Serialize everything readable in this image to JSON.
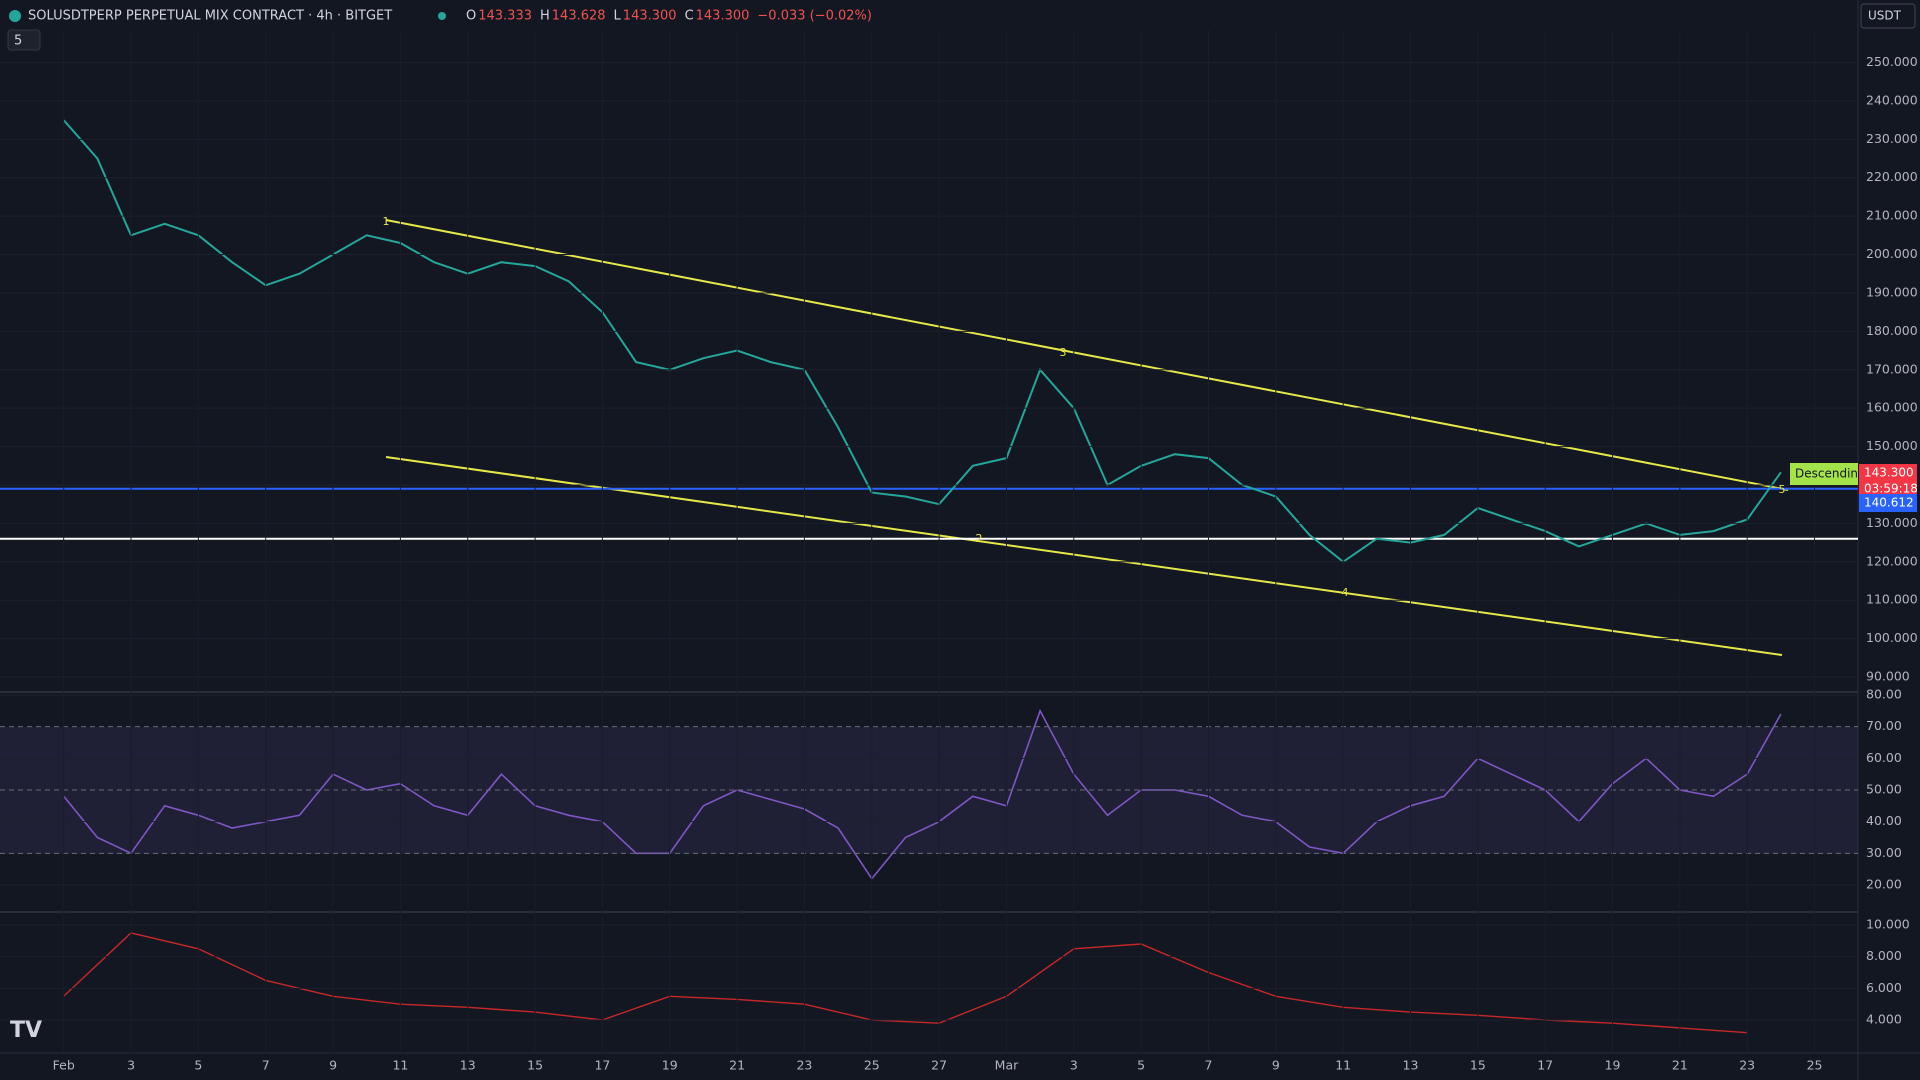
{
  "header": {
    "symbol": "SOLUSDTPERP PERPETUAL MIX CONTRACT · 4h · BITGET",
    "ohlc": [
      {
        "label": "O",
        "value": "143.333"
      },
      {
        "label": "H",
        "value": "143.628"
      },
      {
        "label": "L",
        "value": "143.300"
      },
      {
        "label": "C",
        "value": "143.300"
      }
    ],
    "change": "−0.033 (−0.02%)",
    "indicators_count": "5",
    "currency": "USDT"
  },
  "price_axis": [
    "250.000",
    "240.000",
    "230.000",
    "220.000",
    "210.000",
    "200.000",
    "190.000",
    "180.000",
    "170.000",
    "160.000",
    "150.000",
    "140.000",
    "130.000",
    "120.000",
    "110.000",
    "100.000",
    "90.000"
  ],
  "price_tags": {
    "last": "143.300",
    "countdown": "03:59:18",
    "level": "140.612",
    "pattern": "Descending"
  },
  "rsi_axis": [
    "80.00",
    "70.00",
    "60.00",
    "50.00",
    "40.00",
    "30.00",
    "20.00"
  ],
  "lower_axis": [
    "10.000",
    "8.000",
    "6.000",
    "4.000"
  ],
  "date_axis": [
    "Feb",
    "3",
    "5",
    "7",
    "9",
    "11",
    "13",
    "15",
    "17",
    "19",
    "21",
    "23",
    "25",
    "27",
    "Mar",
    "3",
    "5",
    "7",
    "9",
    "11",
    "13",
    "15",
    "17",
    "19",
    "21",
    "23",
    "25"
  ],
  "wave_labels": [
    "1",
    "2",
    "3",
    "4",
    "5"
  ],
  "levels": [
    126,
    139
  ],
  "closes": [
    235,
    225,
    205,
    208,
    205,
    198,
    192,
    195,
    200,
    205,
    203,
    198,
    195,
    198,
    197,
    193,
    185,
    172,
    170,
    173,
    175,
    172,
    170,
    155,
    138,
    137,
    135,
    145,
    147,
    170,
    160,
    140,
    145,
    148,
    147,
    140,
    137,
    127,
    120,
    126,
    125,
    127,
    134,
    131,
    128,
    124,
    127,
    130,
    127,
    128,
    131,
    143.3
  ],
  "rsi": [
    48,
    35,
    30,
    45,
    42,
    38,
    40,
    42,
    55,
    50,
    52,
    45,
    42,
    55,
    45,
    42,
    40,
    30,
    30,
    45,
    50,
    47,
    44,
    38,
    22,
    35,
    40,
    48,
    45,
    75,
    55,
    42,
    50,
    50,
    48,
    42,
    40,
    32,
    30,
    40,
    45,
    48,
    60,
    55,
    50,
    40,
    52,
    60,
    50,
    48,
    55,
    74
  ],
  "lower_values": [
    5.5,
    9.5,
    8.5,
    6.5,
    5.5,
    5,
    4.8,
    4.5,
    4,
    5.5,
    5.3,
    5,
    4,
    3.8,
    5.5,
    8.5,
    8.8,
    7,
    5.5,
    4.8,
    4.5,
    4.3,
    4,
    3.8,
    3.5,
    3.2
  ]
}
